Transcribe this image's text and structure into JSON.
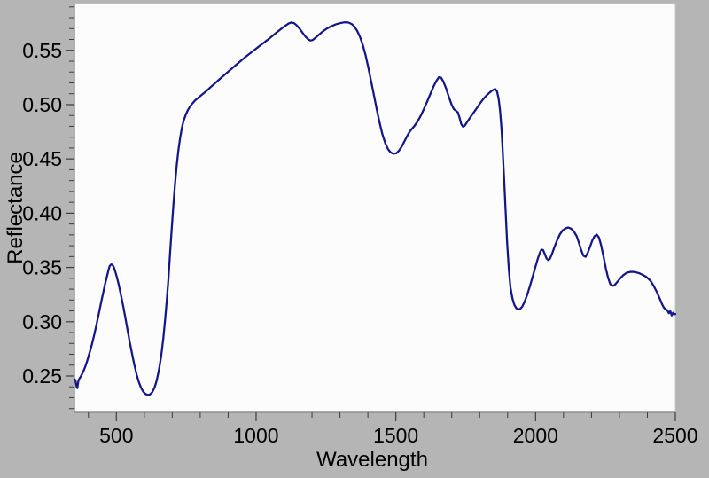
{
  "window": {
    "background": "#b5b5b5"
  },
  "chart_data": {
    "type": "line",
    "title": "",
    "xlabel": "Wavelength",
    "ylabel": "Reflectance",
    "xlim": [
      350,
      2500
    ],
    "ylim": [
      0.2165,
      0.5931
    ],
    "grid": false,
    "legend": "none",
    "plot_background": "#fcfcfc",
    "line_color": "#15158a",
    "axis_color": "#8f8f8f",
    "frame_color": "#c6c6c6",
    "tick_color": "#3c3c3c",
    "label_color": "#000000",
    "x_ticks": {
      "major_values": [
        500,
        1000,
        1500,
        2000,
        2500
      ],
      "major_labels": [
        "500",
        "1000",
        "1500",
        "2000",
        "2500"
      ],
      "minor_step": 100
    },
    "y_ticks": {
      "major_values": [
        0.25,
        0.3,
        0.35,
        0.4,
        0.45,
        0.5,
        0.55
      ],
      "major_labels": [
        "0.25",
        "0.30",
        "0.35",
        "0.40",
        "0.45",
        "0.50",
        "0.55"
      ],
      "minor_step": 0.01
    },
    "series": [
      {
        "name": "reflectance-spectrum",
        "points": [
          [
            350,
            0.247
          ],
          [
            352,
            0.2466
          ],
          [
            354,
            0.2454
          ],
          [
            356,
            0.2428
          ],
          [
            358,
            0.24
          ],
          [
            360,
            0.2388
          ],
          [
            362,
            0.242
          ],
          [
            364,
            0.2452
          ],
          [
            366,
            0.2468
          ],
          [
            369,
            0.248
          ],
          [
            374,
            0.2502
          ],
          [
            380,
            0.2532
          ],
          [
            388,
            0.2582
          ],
          [
            396,
            0.2642
          ],
          [
            404,
            0.2712
          ],
          [
            412,
            0.2788
          ],
          [
            420,
            0.2872
          ],
          [
            428,
            0.2962
          ],
          [
            436,
            0.3058
          ],
          [
            444,
            0.3158
          ],
          [
            452,
            0.3258
          ],
          [
            460,
            0.3352
          ],
          [
            467,
            0.3425
          ],
          [
            472,
            0.3478
          ],
          [
            476,
            0.3512
          ],
          [
            481,
            0.3528
          ],
          [
            486,
            0.3525
          ],
          [
            492,
            0.3495
          ],
          [
            500,
            0.3428
          ],
          [
            508,
            0.3348
          ],
          [
            516,
            0.3252
          ],
          [
            524,
            0.3148
          ],
          [
            532,
            0.3038
          ],
          [
            540,
            0.2925
          ],
          [
            548,
            0.2812
          ],
          [
            556,
            0.2705
          ],
          [
            564,
            0.2605
          ],
          [
            572,
            0.2518
          ],
          [
            580,
            0.2448
          ],
          [
            588,
            0.2392
          ],
          [
            596,
            0.2355
          ],
          [
            604,
            0.2335
          ],
          [
            612,
            0.2325
          ],
          [
            620,
            0.233
          ],
          [
            628,
            0.235
          ],
          [
            636,
            0.239
          ],
          [
            644,
            0.2455
          ],
          [
            652,
            0.255
          ],
          [
            660,
            0.268
          ],
          [
            668,
            0.285
          ],
          [
            674,
            0.301
          ],
          [
            680,
            0.319
          ],
          [
            686,
            0.339
          ],
          [
            692,
            0.362
          ],
          [
            698,
            0.385
          ],
          [
            704,
            0.407
          ],
          [
            710,
            0.427
          ],
          [
            716,
            0.444
          ],
          [
            722,
            0.458
          ],
          [
            728,
            0.469
          ],
          [
            734,
            0.478
          ],
          [
            740,
            0.4845
          ],
          [
            748,
            0.4905
          ],
          [
            756,
            0.495
          ],
          [
            764,
            0.4985
          ],
          [
            772,
            0.501
          ],
          [
            782,
            0.504
          ],
          [
            794,
            0.5065
          ],
          [
            808,
            0.5095
          ],
          [
            822,
            0.5125
          ],
          [
            836,
            0.5158
          ],
          [
            850,
            0.519
          ],
          [
            868,
            0.5232
          ],
          [
            886,
            0.5272
          ],
          [
            904,
            0.5312
          ],
          [
            922,
            0.5352
          ],
          [
            940,
            0.5392
          ],
          [
            958,
            0.543
          ],
          [
            976,
            0.5467
          ],
          [
            994,
            0.5503
          ],
          [
            1012,
            0.554
          ],
          [
            1030,
            0.5575
          ],
          [
            1048,
            0.561
          ],
          [
            1064,
            0.5645
          ],
          [
            1080,
            0.5678
          ],
          [
            1094,
            0.5706
          ],
          [
            1106,
            0.5728
          ],
          [
            1116,
            0.5746
          ],
          [
            1126,
            0.5756
          ],
          [
            1136,
            0.575
          ],
          [
            1146,
            0.5728
          ],
          [
            1156,
            0.5698
          ],
          [
            1166,
            0.5662
          ],
          [
            1176,
            0.5628
          ],
          [
            1186,
            0.5602
          ],
          [
            1194,
            0.559
          ],
          [
            1202,
            0.5594
          ],
          [
            1212,
            0.5614
          ],
          [
            1224,
            0.5642
          ],
          [
            1238,
            0.5672
          ],
          [
            1252,
            0.5698
          ],
          [
            1268,
            0.572
          ],
          [
            1284,
            0.5738
          ],
          [
            1300,
            0.575
          ],
          [
            1316,
            0.5758
          ],
          [
            1330,
            0.5756
          ],
          [
            1342,
            0.5742
          ],
          [
            1352,
            0.5718
          ],
          [
            1362,
            0.5678
          ],
          [
            1372,
            0.5622
          ],
          [
            1382,
            0.5548
          ],
          [
            1392,
            0.5452
          ],
          [
            1402,
            0.5338
          ],
          [
            1412,
            0.521
          ],
          [
            1422,
            0.508
          ],
          [
            1432,
            0.4952
          ],
          [
            1442,
            0.4832
          ],
          [
            1452,
            0.4726
          ],
          [
            1462,
            0.4645
          ],
          [
            1472,
            0.459
          ],
          [
            1482,
            0.4558
          ],
          [
            1492,
            0.4548
          ],
          [
            1502,
            0.4552
          ],
          [
            1512,
            0.4578
          ],
          [
            1522,
            0.4618
          ],
          [
            1532,
            0.4668
          ],
          [
            1542,
            0.4718
          ],
          [
            1550,
            0.4752
          ],
          [
            1558,
            0.4778
          ],
          [
            1566,
            0.4802
          ],
          [
            1576,
            0.4838
          ],
          [
            1588,
            0.4892
          ],
          [
            1600,
            0.4958
          ],
          [
            1612,
            0.5028
          ],
          [
            1624,
            0.5102
          ],
          [
            1636,
            0.5172
          ],
          [
            1646,
            0.5222
          ],
          [
            1654,
            0.5252
          ],
          [
            1662,
            0.5248
          ],
          [
            1670,
            0.5212
          ],
          [
            1680,
            0.5148
          ],
          [
            1690,
            0.5068
          ],
          [
            1700,
            0.4998
          ],
          [
            1708,
            0.4958
          ],
          [
            1716,
            0.4942
          ],
          [
            1722,
            0.4928
          ],
          [
            1728,
            0.4878
          ],
          [
            1734,
            0.4822
          ],
          [
            1740,
            0.4798
          ],
          [
            1746,
            0.4804
          ],
          [
            1754,
            0.4834
          ],
          [
            1764,
            0.4874
          ],
          [
            1776,
            0.4918
          ],
          [
            1788,
            0.4962
          ],
          [
            1800,
            0.5008
          ],
          [
            1812,
            0.5048
          ],
          [
            1824,
            0.5084
          ],
          [
            1836,
            0.5112
          ],
          [
            1846,
            0.5132
          ],
          [
            1855,
            0.5145
          ],
          [
            1862,
            0.5122
          ],
          [
            1868,
            0.5052
          ],
          [
            1873,
            0.4942
          ],
          [
            1878,
            0.4775
          ],
          [
            1883,
            0.4545
          ],
          [
            1888,
            0.4285
          ],
          [
            1893,
            0.4005
          ],
          [
            1898,
            0.373
          ],
          [
            1904,
            0.349
          ],
          [
            1910,
            0.332
          ],
          [
            1917,
            0.3215
          ],
          [
            1924,
            0.3155
          ],
          [
            1931,
            0.3125
          ],
          [
            1938,
            0.3115
          ],
          [
            1945,
            0.3118
          ],
          [
            1952,
            0.3138
          ],
          [
            1960,
            0.318
          ],
          [
            1970,
            0.3248
          ],
          [
            1980,
            0.333
          ],
          [
            1990,
            0.342
          ],
          [
            2000,
            0.351
          ],
          [
            2008,
            0.358
          ],
          [
            2015,
            0.3635
          ],
          [
            2021,
            0.3665
          ],
          [
            2027,
            0.366
          ],
          [
            2033,
            0.3625
          ],
          [
            2039,
            0.3585
          ],
          [
            2045,
            0.3568
          ],
          [
            2051,
            0.3578
          ],
          [
            2059,
            0.3625
          ],
          [
            2067,
            0.3685
          ],
          [
            2077,
            0.375
          ],
          [
            2087,
            0.3805
          ],
          [
            2097,
            0.3842
          ],
          [
            2107,
            0.386
          ],
          [
            2117,
            0.3868
          ],
          [
            2127,
            0.3858
          ],
          [
            2137,
            0.3832
          ],
          [
            2147,
            0.3788
          ],
          [
            2155,
            0.3728
          ],
          [
            2163,
            0.3662
          ],
          [
            2171,
            0.3608
          ],
          [
            2179,
            0.3598
          ],
          [
            2187,
            0.3638
          ],
          [
            2195,
            0.3692
          ],
          [
            2203,
            0.3748
          ],
          [
            2211,
            0.3788
          ],
          [
            2219,
            0.3802
          ],
          [
            2227,
            0.3775
          ],
          [
            2235,
            0.37
          ],
          [
            2243,
            0.36
          ],
          [
            2251,
            0.3495
          ],
          [
            2259,
            0.3408
          ],
          [
            2267,
            0.3348
          ],
          [
            2275,
            0.333
          ],
          [
            2283,
            0.3338
          ],
          [
            2293,
            0.3368
          ],
          [
            2303,
            0.34
          ],
          [
            2315,
            0.3432
          ],
          [
            2327,
            0.3452
          ],
          [
            2341,
            0.346
          ],
          [
            2355,
            0.3458
          ],
          [
            2369,
            0.3448
          ],
          [
            2383,
            0.3432
          ],
          [
            2397,
            0.3412
          ],
          [
            2411,
            0.3378
          ],
          [
            2423,
            0.3328
          ],
          [
            2435,
            0.3268
          ],
          [
            2445,
            0.3208
          ],
          [
            2453,
            0.3158
          ],
          [
            2459,
            0.313
          ],
          [
            2465,
            0.3114
          ],
          [
            2471,
            0.3106
          ],
          [
            2477,
            0.3078
          ],
          [
            2482,
            0.3098
          ],
          [
            2487,
            0.3058
          ],
          [
            2492,
            0.3082
          ],
          [
            2497,
            0.3068
          ],
          [
            2500,
            0.3072
          ]
        ]
      }
    ]
  }
}
